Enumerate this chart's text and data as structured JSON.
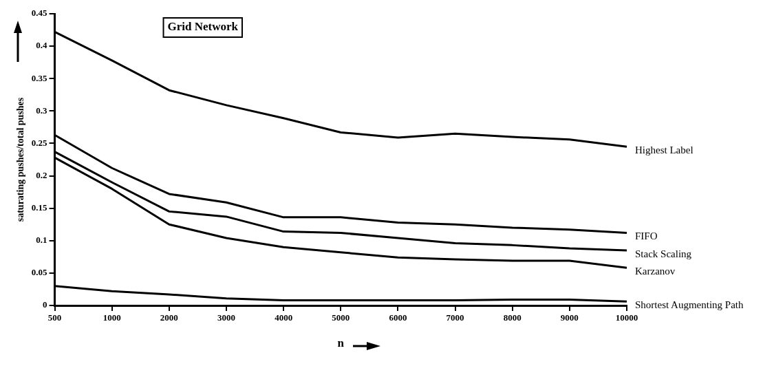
{
  "chart_data": {
    "type": "line",
    "title": "Grid Network",
    "xlabel": "n",
    "ylabel": "saturating pushes/total pushes",
    "categories": [
      "500",
      "1000",
      "2000",
      "3000",
      "4000",
      "5000",
      "6000",
      "7000",
      "8000",
      "9000",
      "10000"
    ],
    "series": [
      {
        "name": "Highest Label",
        "color": "#000000",
        "values": [
          0.422,
          0.378,
          0.332,
          0.309,
          0.289,
          0.267,
          0.259,
          0.265,
          0.26,
          0.256,
          0.245
        ]
      },
      {
        "name": "FIFO",
        "color": "#000000",
        "values": [
          0.263,
          0.212,
          0.172,
          0.159,
          0.136,
          0.136,
          0.128,
          0.125,
          0.12,
          0.117,
          0.112
        ]
      },
      {
        "name": "Stack Scaling",
        "color": "#000000",
        "values": [
          0.237,
          0.19,
          0.145,
          0.137,
          0.114,
          0.112,
          0.104,
          0.096,
          0.093,
          0.088,
          0.085
        ]
      },
      {
        "name": "Karzanov",
        "color": "#000000",
        "values": [
          0.228,
          0.18,
          0.125,
          0.104,
          0.09,
          0.082,
          0.074,
          0.071,
          0.069,
          0.069,
          0.058
        ]
      },
      {
        "name": "Shortest Augmenting Path",
        "color": "#000000",
        "values": [
          0.03,
          0.022,
          0.017,
          0.011,
          0.008,
          0.008,
          0.008,
          0.008,
          0.009,
          0.009,
          0.006
        ]
      }
    ],
    "ylim": [
      0,
      0.45
    ],
    "yticks": [
      0,
      0.05,
      0.1,
      0.15,
      0.2,
      0.25,
      0.3,
      0.35,
      0.4,
      0.45
    ],
    "grid": false,
    "legend": false,
    "marker": "none",
    "line_style": "solid"
  }
}
